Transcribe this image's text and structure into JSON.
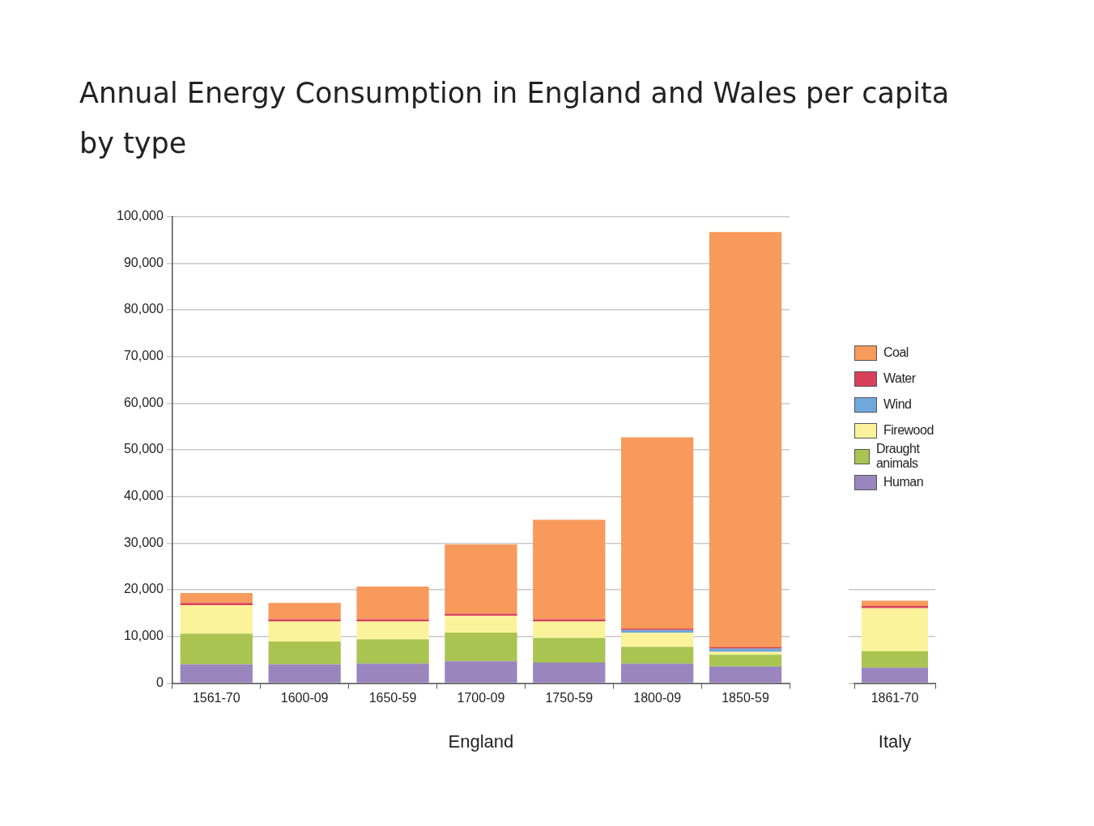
{
  "chart_data": [
    {
      "type": "bar",
      "title": "Annual Energy Consumption in England and Wales per capita by type",
      "xlabel": "England",
      "categories": [
        "1561-70",
        "1600-09",
        "1650-59",
        "1700-09",
        "1750-59",
        "1800-09",
        "1850-59"
      ],
      "stacked": true,
      "ylim": [
        0,
        100000
      ],
      "yticks": [
        0,
        {
          "value": 10000,
          "label": "10,000"
        },
        {
          "value": 20000,
          "label": "20,000"
        },
        {
          "value": 30000,
          "label": "30,000"
        },
        {
          "value": 40000,
          "label": "40,000"
        },
        {
          "value": 50000,
          "label": "50,000"
        },
        {
          "value": 60000,
          "label": "60,000"
        },
        {
          "value": 70000,
          "label": "70,000"
        },
        {
          "value": 80000,
          "label": "80,000"
        },
        {
          "value": 90000,
          "label": "90,000"
        },
        {
          "value": 100000,
          "label": "100,000"
        }
      ],
      "grid": "y",
      "legend": "right",
      "series": [
        {
          "name": "Human",
          "color": "#9b85bf",
          "values": [
            4000,
            4000,
            4200,
            4700,
            4400,
            4200,
            3600
          ]
        },
        {
          "name": "Draught animals",
          "color": "#a9c451",
          "values": [
            6600,
            4900,
            5200,
            6100,
            5300,
            3600,
            2500
          ]
        },
        {
          "name": "Firewood",
          "color": "#fbf39c",
          "values": [
            6100,
            4300,
            3800,
            3600,
            3500,
            3000,
            600
          ]
        },
        {
          "name": "Wind",
          "color": "#6fa8dc",
          "values": [
            0,
            0,
            0,
            0,
            0,
            600,
            700
          ]
        },
        {
          "name": "Water",
          "color": "#d9405a",
          "values": [
            500,
            500,
            500,
            500,
            500,
            300,
            300
          ]
        },
        {
          "name": "Coal",
          "color": "#f79a5c",
          "values": [
            2100,
            3500,
            7000,
            14800,
            21300,
            41000,
            89000
          ]
        }
      ]
    },
    {
      "type": "bar",
      "xlabel": "Italy",
      "categories": [
        "1861-70"
      ],
      "stacked": true,
      "ylim": [
        0,
        100000
      ],
      "yticks": [
        {
          "value": 0,
          "label": null
        },
        {
          "value": 10000,
          "label": null
        },
        {
          "value": 20000,
          "label": null
        }
      ],
      "grid": "y",
      "tick_labels": "x",
      "series": [
        {
          "color": "#9b85bf",
          "values": [
            3300
          ]
        },
        {
          "color": "#a9c451",
          "values": [
            3500
          ]
        },
        {
          "color": "#fbf39c",
          "values": [
            9200
          ]
        },
        {
          "color": "#6fa8dc",
          "values": [
            0
          ]
        },
        {
          "color": "#d9405a",
          "values": [
            500
          ]
        },
        {
          "color": "#f79a5c",
          "values": [
            1100
          ]
        }
      ]
    }
  ]
}
